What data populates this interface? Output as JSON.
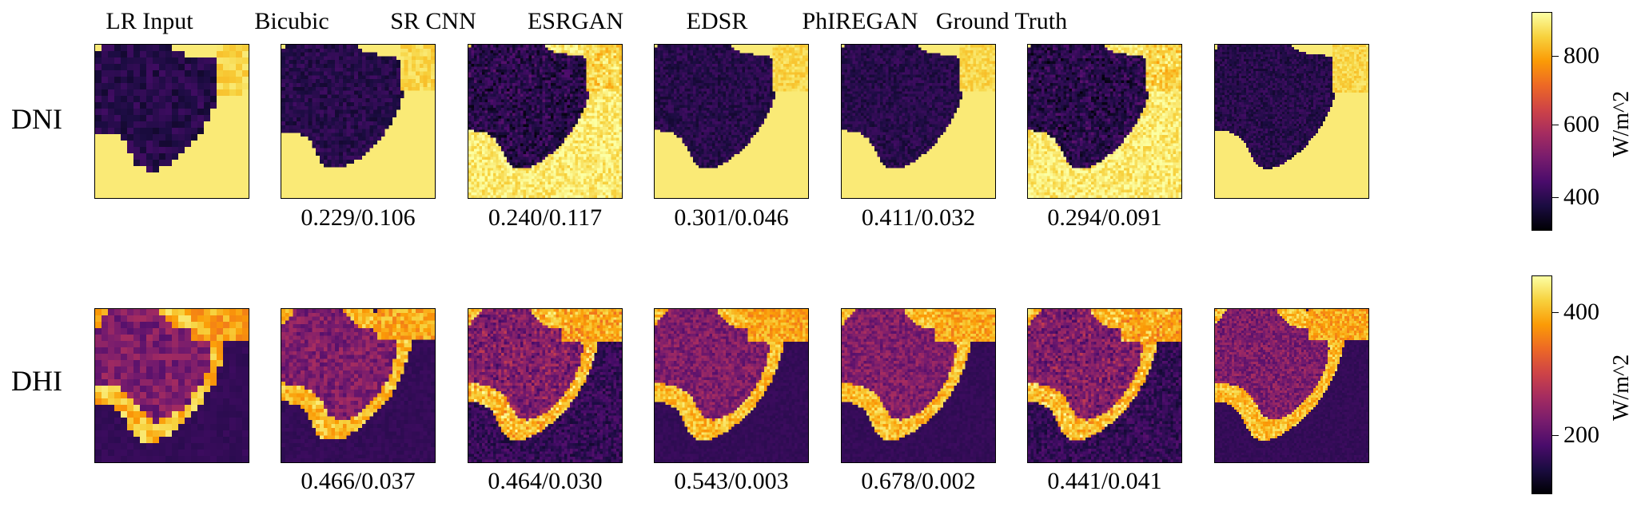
{
  "columns": [
    "LR Input",
    "Bicubic",
    "SR CNN",
    "ESRGAN",
    "EDSR",
    "PhIREGAN",
    "Ground Truth"
  ],
  "rows": [
    {
      "label": "DNI",
      "metrics": [
        "",
        "0.229/0.106",
        "0.240/0.117",
        "0.301/0.046",
        "0.411/0.032",
        "0.294/0.091",
        ""
      ],
      "colorbar": {
        "label": "W/m^2",
        "ticks": [
          "800",
          "600",
          "400"
        ]
      }
    },
    {
      "label": "DHI",
      "metrics": [
        "",
        "0.466/0.037",
        "0.464/0.030",
        "0.543/0.003",
        "0.678/0.002",
        "0.441/0.041",
        ""
      ],
      "colorbar": {
        "label": "W/m^2",
        "ticks": [
          "400",
          "200"
        ]
      }
    }
  ],
  "colormap": {
    "name": "inferno",
    "stops": [
      "#000004",
      "#1b0c41",
      "#4a0c6b",
      "#781c6d",
      "#a52c60",
      "#cf4446",
      "#ed6925",
      "#fb9b06",
      "#f7d13d",
      "#fcffa4"
    ]
  }
}
